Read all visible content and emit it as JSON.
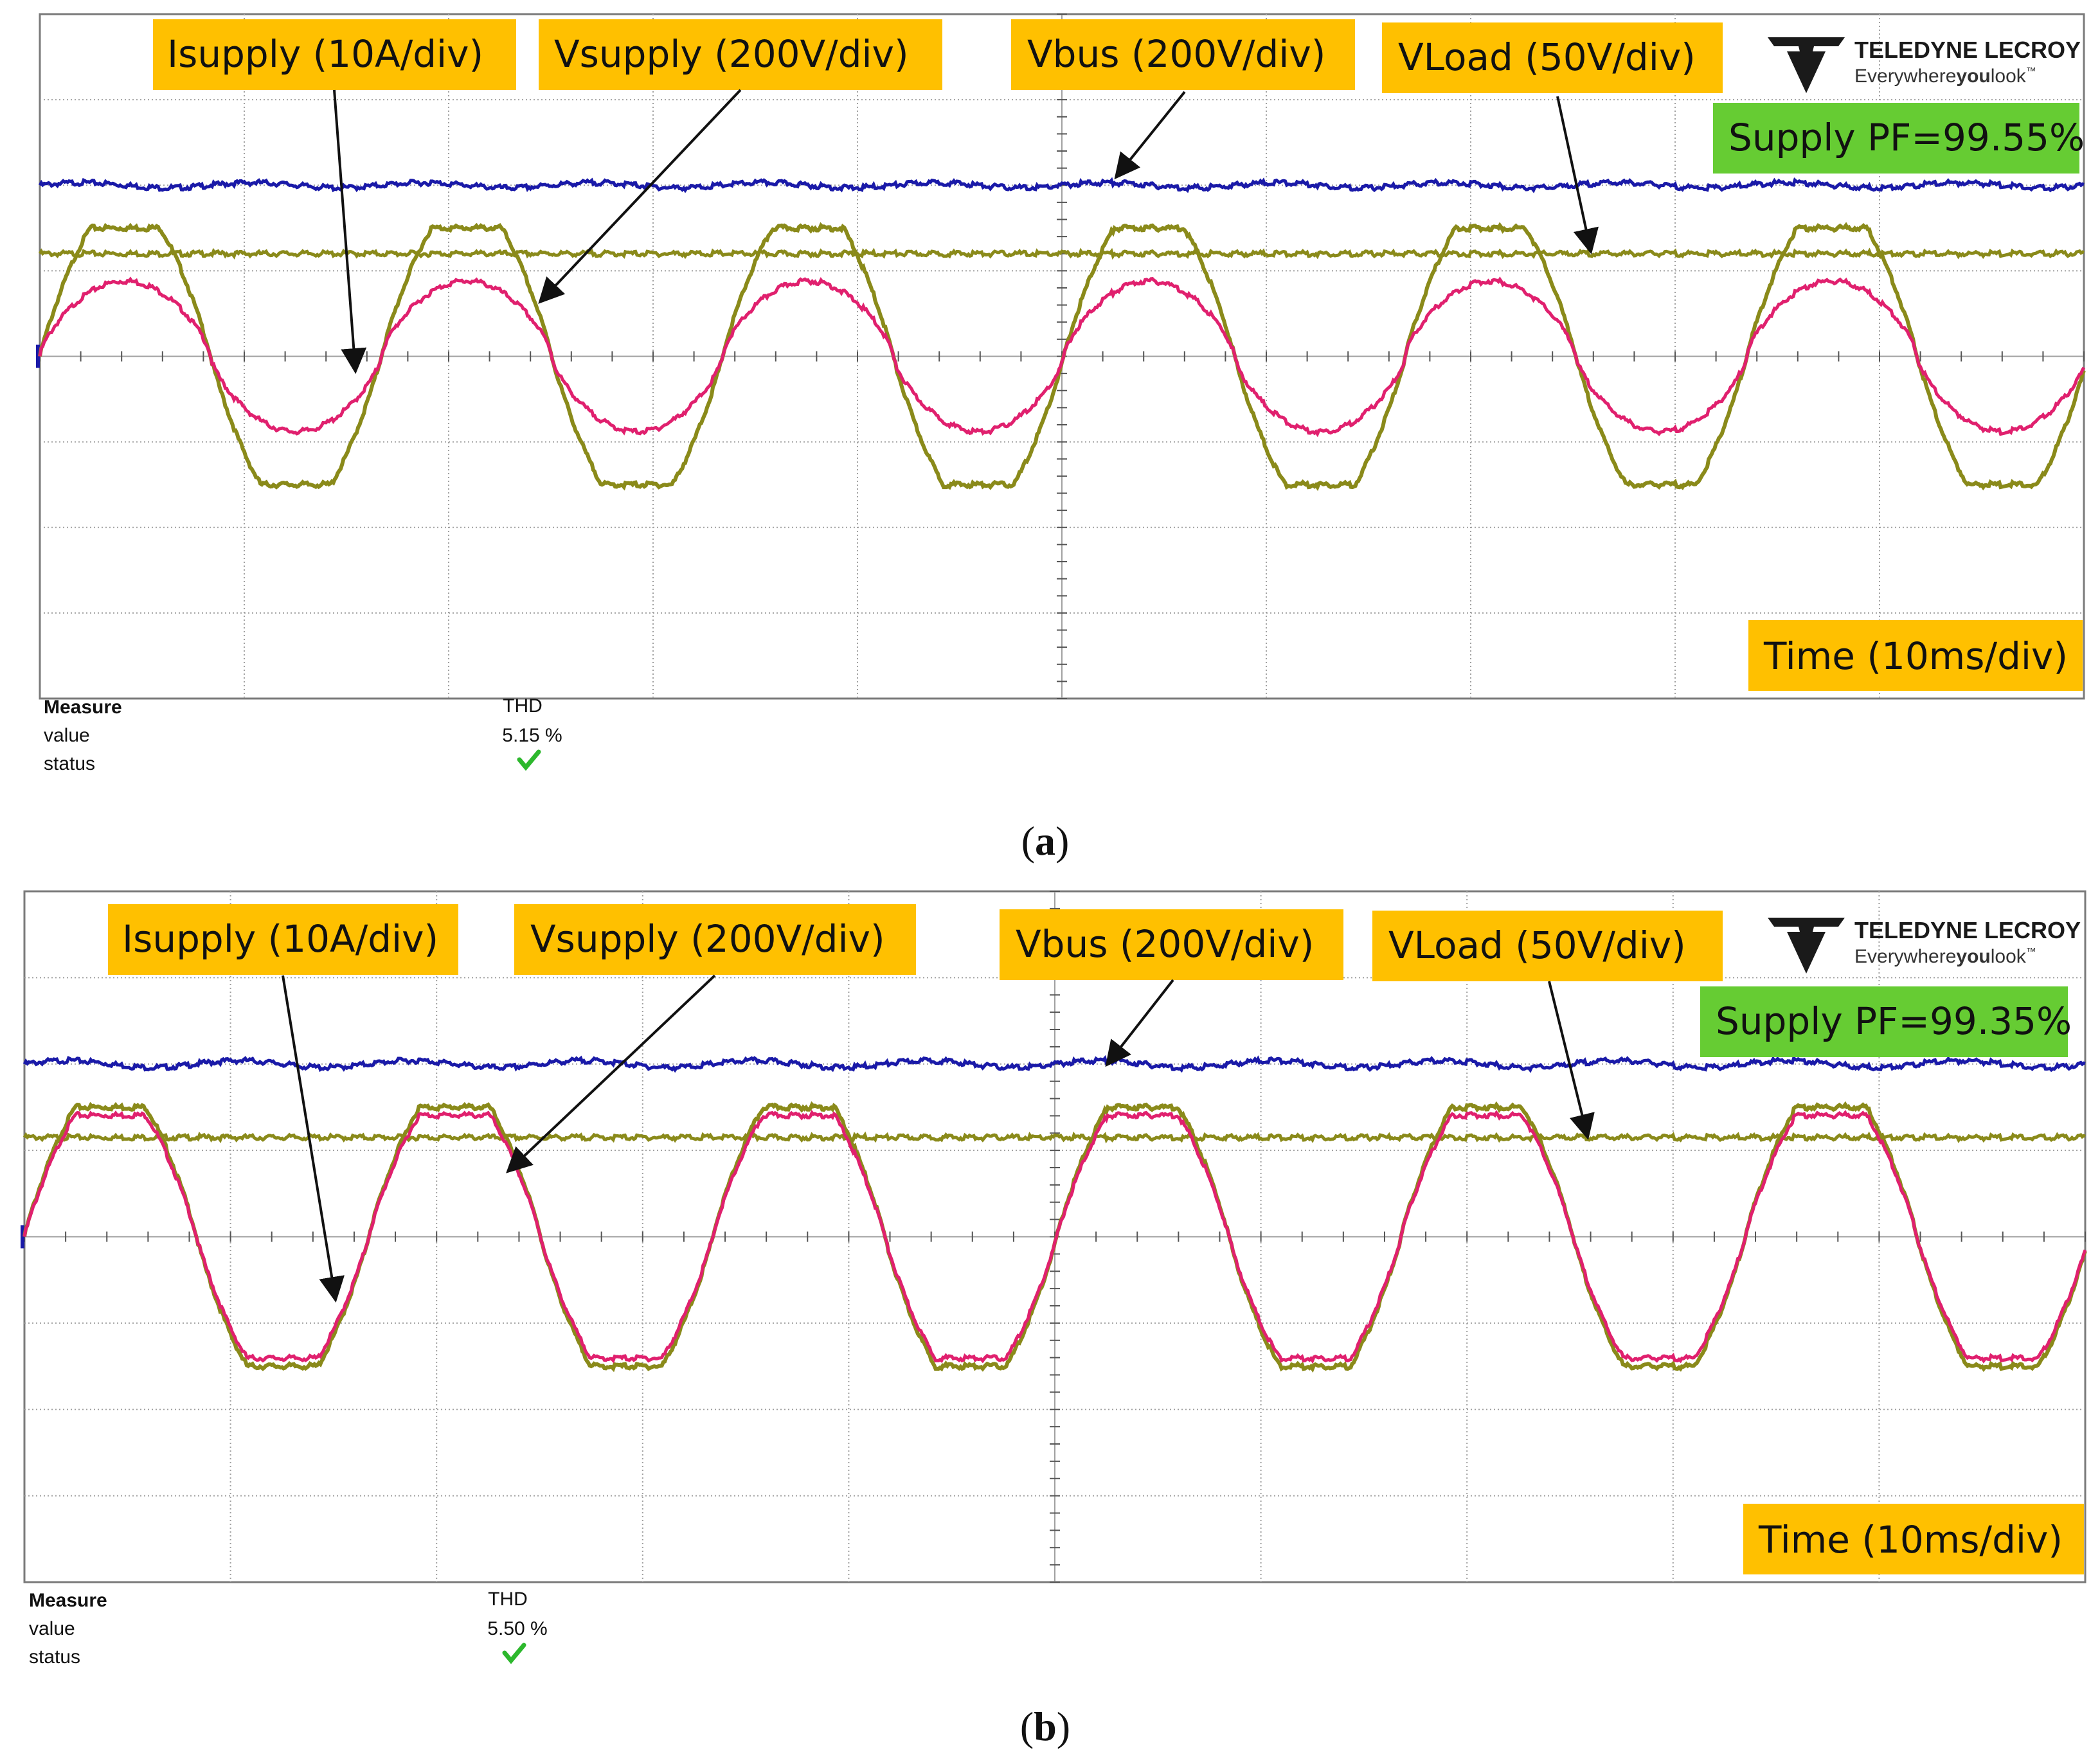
{
  "brand": {
    "name": "TELEDYNE LECROY",
    "tagline": "Everywhereyoulook",
    "tagline_pre": "Everywhere",
    "tagline_bold": "you",
    "tagline_post": "look",
    "tm": "™"
  },
  "colors": {
    "label_bg": "#FFC000",
    "pf_bg": "#66CC33",
    "vbus": "#1a1aa8",
    "isupply": "#e0206e",
    "vsupply": "#8a8a1a",
    "vload": "#8a8a1a",
    "grid": "#a0a0a0"
  },
  "chart_data": [
    {
      "type": "line",
      "caption": "(a)",
      "caption_letter": "a",
      "title": "",
      "xlabel": "Time (10ms/div)",
      "divisions": {
        "x": 10,
        "y": 8
      },
      "grid": true,
      "x_unit": "ms",
      "xlim": [
        0,
        100
      ],
      "ylim_div": [
        -4,
        4
      ],
      "supply_pf_label": "Supply PF=99.55%",
      "measure": {
        "header": "Measure",
        "param": "THD",
        "value_label": "value",
        "value": "5.15 %",
        "status_label": "status",
        "status": "ok"
      },
      "series": [
        {
          "name": "Isupply",
          "label": "Isupply (10A/div)",
          "kind": "current",
          "offset_div": 0,
          "amp_div": 0.88,
          "period_ms": 16.7,
          "phase_ms": 0
        },
        {
          "name": "Vsupply",
          "label": "Vsupply (200V/div)",
          "kind": "clipped",
          "offset_div": 0,
          "amp_div": 1.5,
          "period_ms": 16.7,
          "phase_ms": 0
        },
        {
          "name": "Vbus",
          "label": "Vbus (200V/div)",
          "kind": "ripple",
          "offset_div": 2.0,
          "amp_div": 0.03,
          "period_ms": 8.35
        },
        {
          "name": "VLoad",
          "label": "VLoad (50V/div)",
          "kind": "flat",
          "offset_div": 1.2,
          "amp_div": 0
        }
      ]
    },
    {
      "type": "line",
      "caption": "(b)",
      "caption_letter": "b",
      "title": "",
      "xlabel": "Time (10ms/div)",
      "divisions": {
        "x": 10,
        "y": 8
      },
      "grid": true,
      "x_unit": "ms",
      "xlim": [
        0,
        100
      ],
      "ylim_div": [
        -4,
        4
      ],
      "supply_pf_label": "Supply PF=99.35%",
      "measure": {
        "header": "Measure",
        "param": "THD",
        "value_label": "value",
        "value": "5.50 %",
        "status_label": "status",
        "status": "ok"
      },
      "series": [
        {
          "name": "Isupply",
          "label": "Isupply (10A/div)",
          "kind": "clipped-i",
          "offset_div": 0,
          "amp_div": 1.45,
          "period_ms": 16.7,
          "phase_ms": 0
        },
        {
          "name": "Vsupply",
          "label": "Vsupply (200V/div)",
          "kind": "clipped",
          "offset_div": 0,
          "amp_div": 1.5,
          "period_ms": 16.7,
          "phase_ms": 0
        },
        {
          "name": "Vbus",
          "label": "Vbus (200V/div)",
          "kind": "ripple",
          "offset_div": 2.0,
          "amp_div": 0.04,
          "period_ms": 8.35
        },
        {
          "name": "VLoad",
          "label": "VLoad (50V/div)",
          "kind": "flat",
          "offset_div": 1.15,
          "amp_div": 0
        }
      ]
    }
  ]
}
